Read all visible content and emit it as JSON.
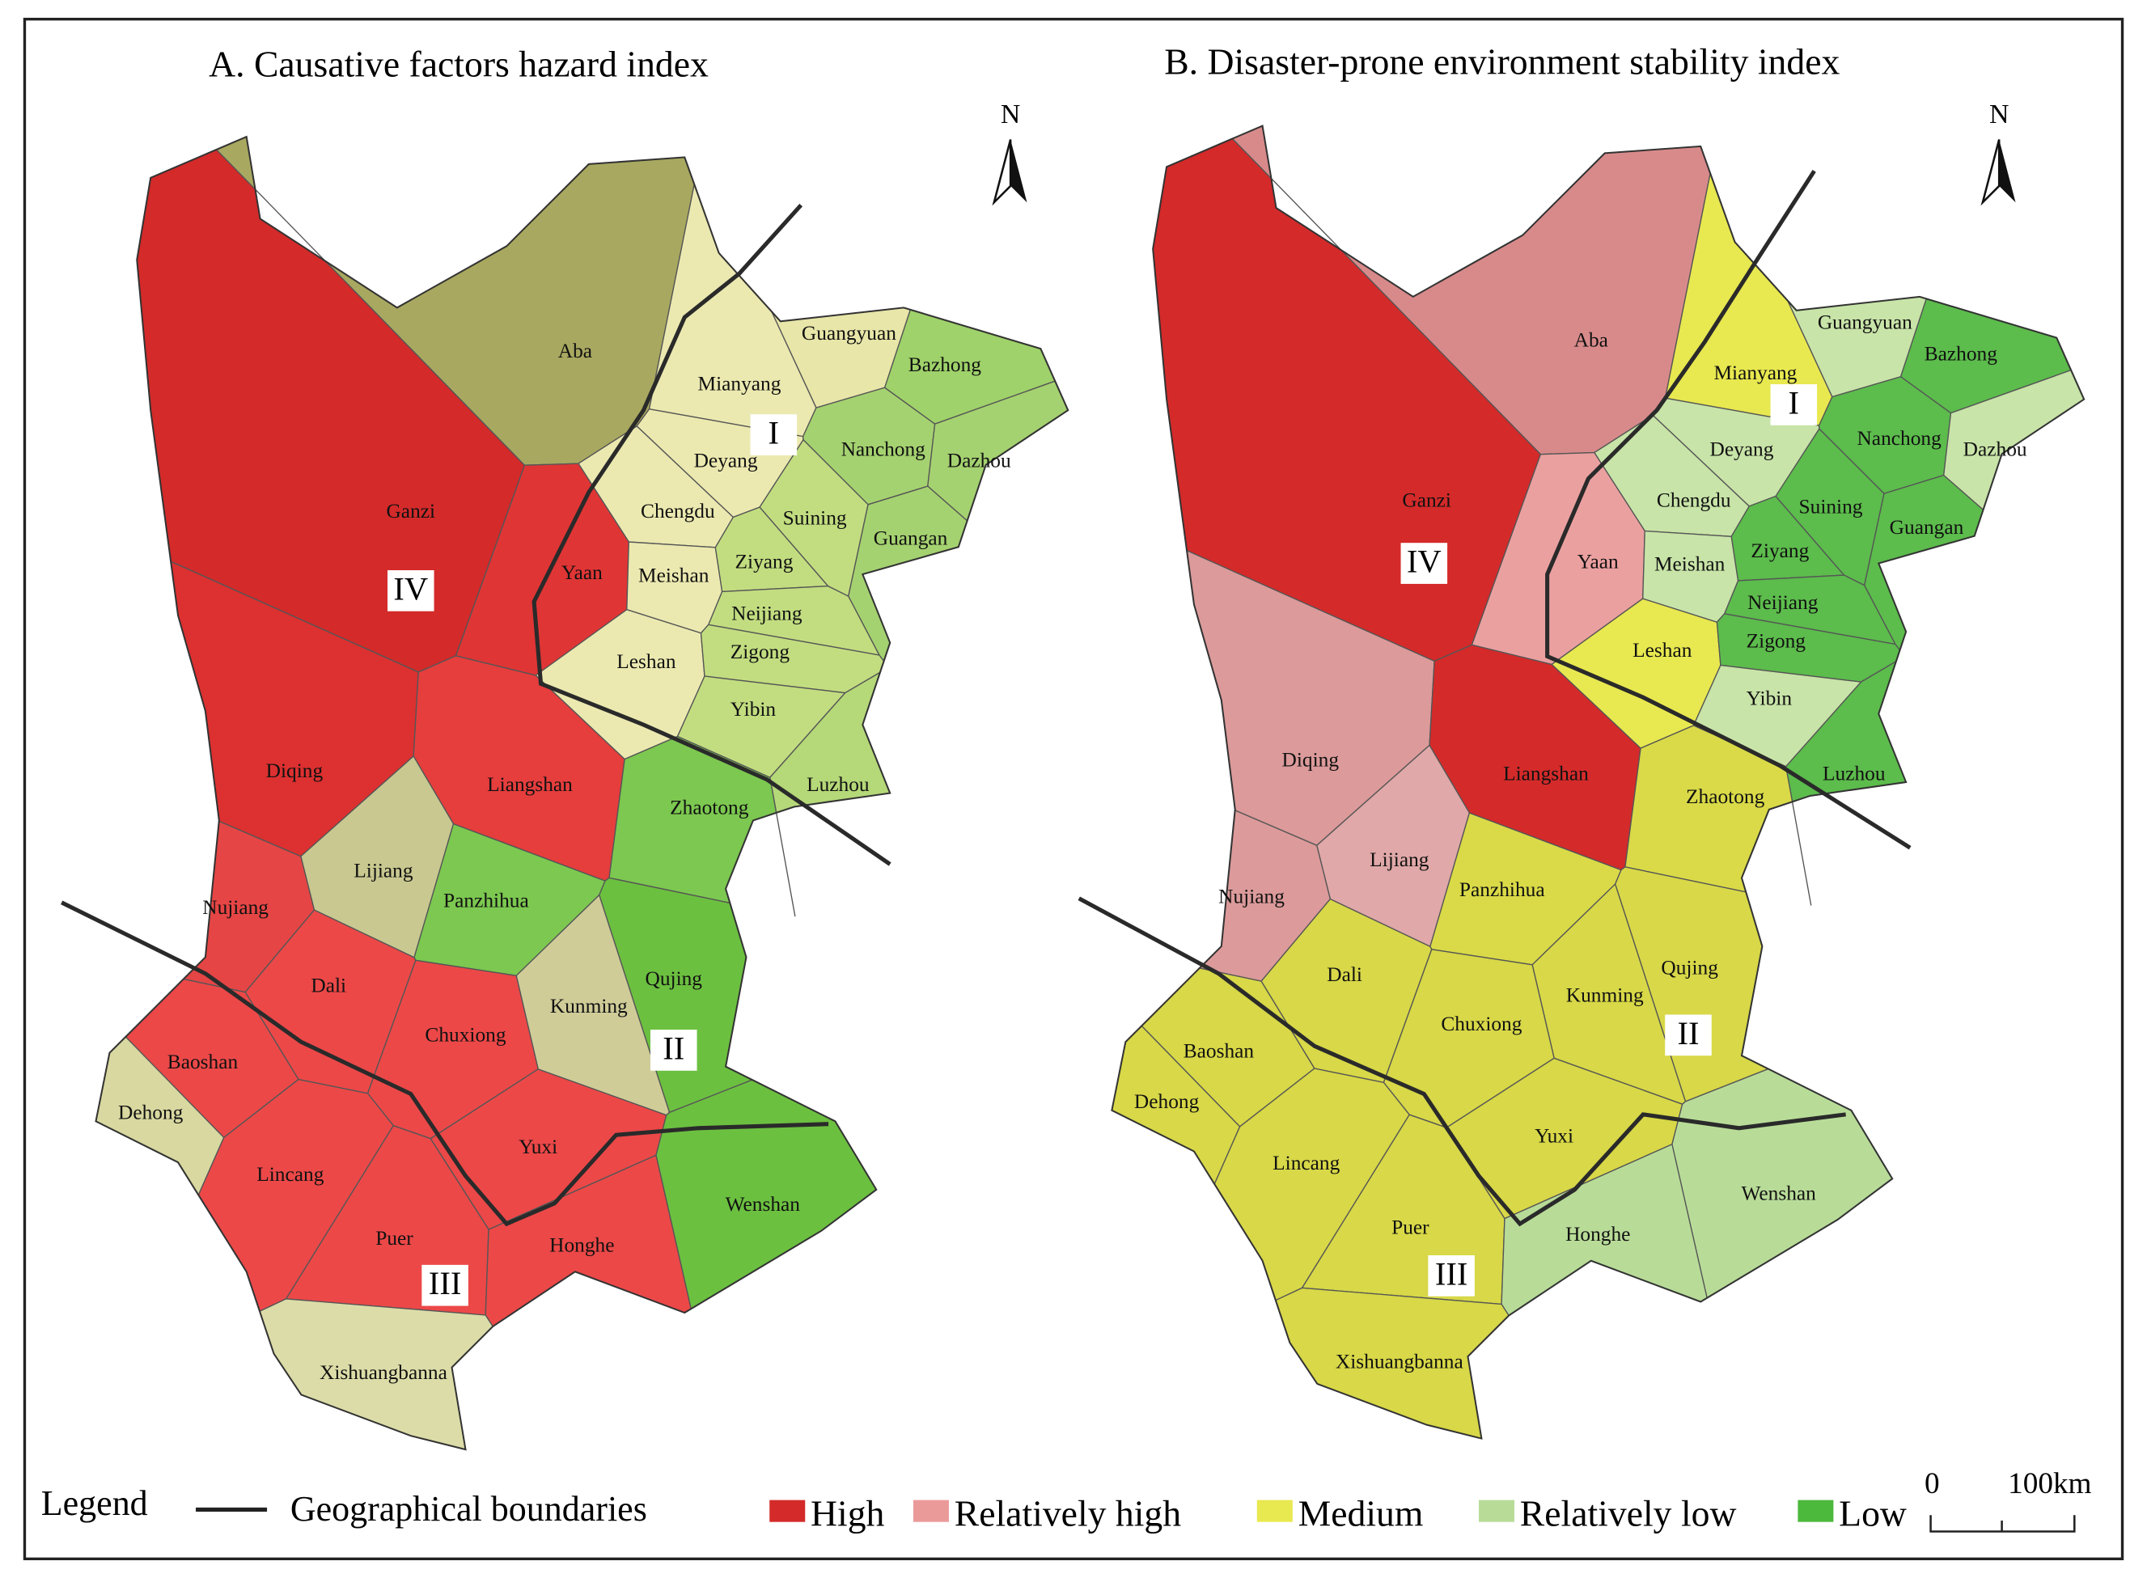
{
  "panels": [
    {
      "title": "A. Causative factors hazard index",
      "north": "N",
      "zones": [
        "I",
        "II",
        "III",
        "IV"
      ],
      "regions": [
        {
          "name": "Ganzi",
          "color": "#d42a2a"
        },
        {
          "name": "Aba",
          "color": "#a8a860"
        },
        {
          "name": "Guangyuan",
          "color": "#e8e6a8"
        },
        {
          "name": "Mianyang",
          "color": "#ebe9b0"
        },
        {
          "name": "Bazhong",
          "color": "#9fd26a"
        },
        {
          "name": "Deyang",
          "color": "#ece9b0"
        },
        {
          "name": "Nanchong",
          "color": "#a5d270"
        },
        {
          "name": "Dazhou",
          "color": "#a5d270"
        },
        {
          "name": "Chengdu",
          "color": "#ebe9b0"
        },
        {
          "name": "Suining",
          "color": "#c2dd80"
        },
        {
          "name": "Guangan",
          "color": "#a5d270"
        },
        {
          "name": "Yaan",
          "color": "#e03535"
        },
        {
          "name": "Meishan",
          "color": "#ebe9b0"
        },
        {
          "name": "Ziyang",
          "color": "#c2dd80"
        },
        {
          "name": "Neijiang",
          "color": "#c2dd80"
        },
        {
          "name": "Leshan",
          "color": "#ebe9b0"
        },
        {
          "name": "Zigong",
          "color": "#c2dd80"
        },
        {
          "name": "Yibin",
          "color": "#c2dd80"
        },
        {
          "name": "Luzhou",
          "color": "#b5d878"
        },
        {
          "name": "Diqing",
          "color": "#dd3030"
        },
        {
          "name": "Liangshan",
          "color": "#e63d3d"
        },
        {
          "name": "Zhaotong",
          "color": "#7cc850"
        },
        {
          "name": "Lijiang",
          "color": "#c8c890"
        },
        {
          "name": "Panzhihua",
          "color": "#7cc850"
        },
        {
          "name": "Nujiang",
          "color": "#e64545"
        },
        {
          "name": "Dali",
          "color": "#ec4848"
        },
        {
          "name": "Qujing",
          "color": "#6cc040"
        },
        {
          "name": "Kunming",
          "color": "#cfcc98"
        },
        {
          "name": "Chuxiong",
          "color": "#ec4848"
        },
        {
          "name": "Baoshan",
          "color": "#ec4848"
        },
        {
          "name": "Dehong",
          "color": "#d8d8a0"
        },
        {
          "name": "Yuxi",
          "color": "#ec4848"
        },
        {
          "name": "Lincang",
          "color": "#ec4848"
        },
        {
          "name": "Wenshan",
          "color": "#6cc040"
        },
        {
          "name": "Puer",
          "color": "#ec4848"
        },
        {
          "name": "Honghe",
          "color": "#ec4848"
        },
        {
          "name": "Xishuangbanna",
          "color": "#dcdca8"
        }
      ]
    },
    {
      "title": "B. Disaster-prone environment stability index",
      "north": "N",
      "zones": [
        "I",
        "II",
        "III",
        "IV"
      ],
      "regions": [
        {
          "name": "Ganzi",
          "color": "#d42a2a"
        },
        {
          "name": "Aba",
          "color": "#d88a8a"
        },
        {
          "name": "Guangyuan",
          "color": "#c8e4a8"
        },
        {
          "name": "Mianyang",
          "color": "#e8e850"
        },
        {
          "name": "Bazhong",
          "color": "#5cbc4c"
        },
        {
          "name": "Deyang",
          "color": "#c8e4a8"
        },
        {
          "name": "Nanchong",
          "color": "#5cbc4c"
        },
        {
          "name": "Dazhou",
          "color": "#c8e4a8"
        },
        {
          "name": "Chengdu",
          "color": "#c8e4a8"
        },
        {
          "name": "Suining",
          "color": "#5cbc4c"
        },
        {
          "name": "Guangan",
          "color": "#5cbc4c"
        },
        {
          "name": "Yaan",
          "color": "#eba0a0"
        },
        {
          "name": "Meishan",
          "color": "#c8e4a8"
        },
        {
          "name": "Ziyang",
          "color": "#5cbc4c"
        },
        {
          "name": "Neijiang",
          "color": "#5cbc4c"
        },
        {
          "name": "Leshan",
          "color": "#e8e850"
        },
        {
          "name": "Zigong",
          "color": "#5cbc4c"
        },
        {
          "name": "Yibin",
          "color": "#c8e4a8"
        },
        {
          "name": "Luzhou",
          "color": "#5cbc4c"
        },
        {
          "name": "Diqing",
          "color": "#dc9a9a"
        },
        {
          "name": "Liangshan",
          "color": "#d42a2a"
        },
        {
          "name": "Zhaotong",
          "color": "#dada48"
        },
        {
          "name": "Lijiang",
          "color": "#e0a8a8"
        },
        {
          "name": "Panzhihua",
          "color": "#dada48"
        },
        {
          "name": "Nujiang",
          "color": "#dc9a9a"
        },
        {
          "name": "Dali",
          "color": "#d8d848"
        },
        {
          "name": "Qujing",
          "color": "#d8d848"
        },
        {
          "name": "Kunming",
          "color": "#d8d848"
        },
        {
          "name": "Chuxiong",
          "color": "#d8d848"
        },
        {
          "name": "Baoshan",
          "color": "#d8d848"
        },
        {
          "name": "Dehong",
          "color": "#d8d848"
        },
        {
          "name": "Yuxi",
          "color": "#d8d848"
        },
        {
          "name": "Lincang",
          "color": "#d8d848"
        },
        {
          "name": "Wenshan",
          "color": "#b8dc98"
        },
        {
          "name": "Puer",
          "color": "#d8d848"
        },
        {
          "name": "Honghe",
          "color": "#b8dc98"
        },
        {
          "name": "Xishuangbanna",
          "color": "#d8d848"
        }
      ]
    }
  ],
  "legend": {
    "title": "Legend",
    "boundary": "Geographical boundaries",
    "items": [
      {
        "label": "High",
        "color": "#d42a2a"
      },
      {
        "label": "Relatively high",
        "color": "#eb9a9a"
      },
      {
        "label": "Medium",
        "color": "#e8e850"
      },
      {
        "label": "Relatively low",
        "color": "#b8dc98"
      },
      {
        "label": "Low",
        "color": "#4cb83c"
      }
    ]
  },
  "scale": {
    "labels": [
      "0",
      "100km"
    ]
  }
}
